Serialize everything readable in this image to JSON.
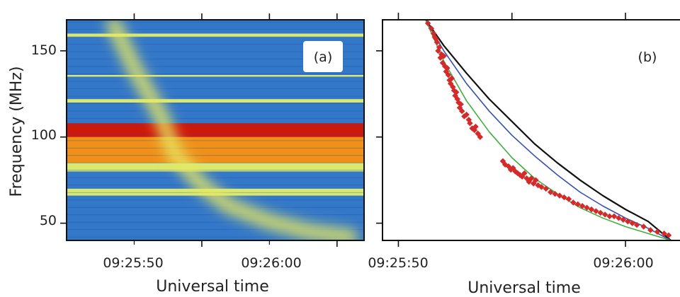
{
  "figure": {
    "ylabel": "Frequency (MHz)",
    "panel_a": {
      "label": "(a)",
      "xlabel": "Universal time",
      "xticks": [
        "09:25:50",
        "09:26:00"
      ],
      "yticks": [
        "50",
        "100",
        "150"
      ]
    },
    "panel_b": {
      "label": "(b)",
      "xlabel": "Universal time",
      "xticks": [
        "09:25:50",
        "09:26:00"
      ]
    }
  },
  "chart_data": [
    {
      "type": "heatmap",
      "title": "",
      "panel_label": "(a)",
      "xlabel": "Universal time",
      "ylabel": "Frequency (MHz)",
      "x_unit": "seconds after 09:25:50",
      "xlim": [
        -10,
        12
      ],
      "ylim": [
        40,
        168
      ],
      "xticks": [
        "09:25:50",
        "09:26:00"
      ],
      "yticks": [
        50,
        100,
        150
      ],
      "colormap": [
        "#1c3a9a",
        "#3a82d4",
        "#78c8ec",
        "#d8e870",
        "#f0e020",
        "#f09018",
        "#d01808"
      ],
      "background_level": 0.25,
      "intensity_bands": [
        {
          "f_low": 100,
          "f_high": 108,
          "level": 0.95
        },
        {
          "f_low": 85,
          "f_high": 100,
          "level": 0.75
        },
        {
          "f_low": 80,
          "f_high": 85,
          "level": 0.55
        },
        {
          "f_low": 66,
          "f_high": 70,
          "level": 0.5
        },
        {
          "f_low": 120,
          "f_high": 122,
          "level": 0.5
        },
        {
          "f_low": 135,
          "f_high": 136,
          "level": 0.55
        },
        {
          "f_low": 158,
          "f_high": 160,
          "level": 0.45
        }
      ],
      "drift_track": [
        {
          "x": -6.5,
          "y": 165
        },
        {
          "x": -5,
          "y": 140
        },
        {
          "x": -3,
          "y": 112
        },
        {
          "x": -2,
          "y": 90
        },
        {
          "x": 0,
          "y": 72
        },
        {
          "x": 2,
          "y": 60
        },
        {
          "x": 5,
          "y": 51
        },
        {
          "x": 8,
          "y": 45
        },
        {
          "x": 11,
          "y": 42
        }
      ]
    },
    {
      "type": "scatter",
      "title": "",
      "panel_label": "(b)",
      "xlabel": "Universal time",
      "ylabel": "Frequency (MHz)",
      "x_unit": "seconds after 09:25:50",
      "xlim": [
        -0.7,
        12.4
      ],
      "ylim": [
        40,
        168
      ],
      "xticks": [
        "09:25:50",
        "09:26:00"
      ],
      "series": [
        {
          "kind": "line",
          "color": "#111111",
          "x": [
            1.2,
            2,
            3,
            4,
            5,
            6,
            7,
            8,
            9,
            10,
            11,
            12
          ],
          "y": [
            168,
            153,
            137,
            122,
            109,
            96,
            85,
            75,
            66,
            58,
            51,
            40
          ]
        },
        {
          "kind": "line",
          "color": "#3550b0",
          "x": [
            1.2,
            2,
            3,
            4,
            5,
            6,
            7,
            8,
            9,
            10,
            11,
            12
          ],
          "y": [
            168,
            150,
            131,
            115,
            101,
            89,
            78,
            68,
            60,
            53,
            47,
            40
          ]
        },
        {
          "kind": "line",
          "color": "#3fae3f",
          "x": [
            1.2,
            2,
            3,
            4,
            5,
            6,
            7,
            8,
            9,
            10,
            11,
            12
          ],
          "y": [
            168,
            144,
            121,
            103,
            88,
            76,
            67,
            59,
            53,
            48,
            44,
            40
          ]
        },
        {
          "kind": "points",
          "color": "#d42a2a",
          "x": [
            1.3,
            1.45,
            1.6,
            1.7,
            1.75,
            1.8,
            1.85,
            1.9,
            1.95,
            2.0,
            2.05,
            2.1,
            2.15,
            2.2,
            2.25,
            2.3,
            2.35,
            2.4,
            2.45,
            2.5,
            2.55,
            2.6,
            2.65,
            2.7,
            2.75,
            2.8,
            2.9,
            3.0,
            3.1,
            3.15,
            3.25,
            3.4,
            1.55,
            1.65,
            3.35,
            3.6,
            3.5,
            4.6,
            4.7,
            4.85,
            4.95,
            5.05,
            5.15,
            5.25,
            5.35,
            5.45,
            5.55,
            5.65,
            5.75,
            5.85,
            5.95,
            6.05,
            6.15,
            6.3,
            6.5,
            6.7,
            6.9,
            7.1,
            7.3,
            7.5,
            7.7,
            7.9,
            8.1,
            8.3,
            8.5,
            8.7,
            8.9,
            9.1,
            9.3,
            9.5,
            9.7,
            9.9,
            10.1,
            10.3,
            10.5,
            10.8,
            11.1,
            11.4,
            11.7,
            11.9
          ],
          "y": [
            166,
            163,
            158,
            155,
            150,
            152,
            146,
            148,
            143,
            147,
            141,
            138,
            140,
            136,
            133,
            131,
            134,
            129,
            127,
            124,
            126,
            122,
            120,
            117,
            119,
            115,
            112,
            113,
            110,
            108,
            105,
            106,
            160,
            157,
            104,
            100,
            102,
            86,
            84,
            83,
            81,
            82,
            80,
            79,
            78,
            77,
            79,
            76,
            74,
            76,
            73,
            75,
            72,
            71,
            70,
            68,
            67,
            66,
            65,
            64,
            62,
            61,
            60,
            59,
            58,
            57,
            56,
            55,
            54,
            54,
            53,
            52,
            51,
            50,
            49,
            48,
            46,
            45,
            44,
            43
          ]
        }
      ]
    }
  ]
}
